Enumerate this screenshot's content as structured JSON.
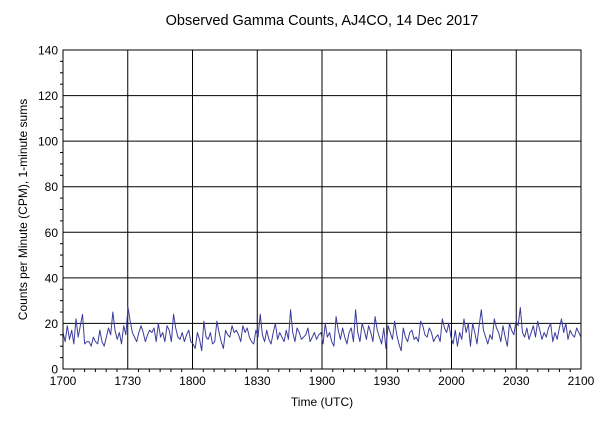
{
  "chart_data": {
    "type": "line",
    "title": "Observed Gamma Counts, AJ4CO, 14 Dec 2017",
    "xlabel": "Time (UTC)",
    "ylabel": "Counts per Minute (CPM), 1-minute sums",
    "x_ticks": [
      "1700",
      "1730",
      "1800",
      "1830",
      "1900",
      "1930",
      "2000",
      "2030",
      "2100"
    ],
    "y_ticks": [
      "0",
      "20",
      "40",
      "60",
      "80",
      "100",
      "120",
      "140"
    ],
    "xlim_minutes": [
      0,
      240
    ],
    "ylim": [
      0,
      140
    ],
    "grid": true,
    "legend": "none",
    "series_color": "#3c3c9c",
    "series": [
      {
        "values": [
          16,
          12,
          19,
          13,
          17,
          11,
          22,
          14,
          19,
          24,
          11,
          12,
          12,
          10,
          14,
          12,
          11,
          17,
          12,
          10,
          14,
          18,
          15,
          25,
          17,
          13,
          16,
          11,
          19,
          15,
          27,
          21,
          16,
          14,
          12,
          16,
          19,
          16,
          12,
          15,
          17,
          16,
          18,
          12,
          20,
          14,
          16,
          12,
          19,
          17,
          12,
          24,
          18,
          14,
          13,
          16,
          12,
          15,
          17,
          12,
          11,
          9,
          16,
          13,
          8,
          21,
          14,
          13,
          16,
          11,
          12,
          21,
          16,
          12,
          9,
          17,
          15,
          14,
          19,
          16,
          17,
          15,
          12,
          19,
          16,
          18,
          14,
          12,
          11,
          17,
          14,
          24,
          15,
          12,
          17,
          13,
          11,
          16,
          20,
          13,
          16,
          14,
          12,
          17,
          13,
          26,
          16,
          12,
          18,
          16,
          13,
          14,
          15,
          18,
          12,
          14,
          16,
          13,
          15,
          16,
          11,
          20,
          14,
          16,
          12,
          10,
          23,
          17,
          13,
          18,
          14,
          11,
          16,
          18,
          12,
          26,
          16,
          12,
          20,
          17,
          13,
          19,
          16,
          12,
          23,
          17,
          14,
          11,
          18,
          9,
          19,
          16,
          13,
          21,
          15,
          11,
          8,
          18,
          14,
          12,
          16,
          17,
          13,
          14,
          12,
          21,
          19,
          15,
          14,
          18,
          16,
          12,
          14,
          15,
          12,
          22,
          18,
          16,
          20,
          14,
          11,
          17,
          10,
          16,
          13,
          22,
          16,
          20,
          10,
          20,
          16,
          11,
          19,
          26,
          17,
          14,
          11,
          15,
          13,
          22,
          18,
          16,
          12,
          19,
          14,
          10,
          20,
          17,
          15,
          21,
          19,
          27,
          16,
          14,
          18,
          13,
          16,
          19,
          14,
          21,
          17,
          13,
          16,
          14,
          18,
          20,
          12,
          16,
          13,
          18,
          22,
          16,
          20,
          13,
          17,
          15,
          14,
          18,
          16,
          14
        ]
      }
    ]
  }
}
